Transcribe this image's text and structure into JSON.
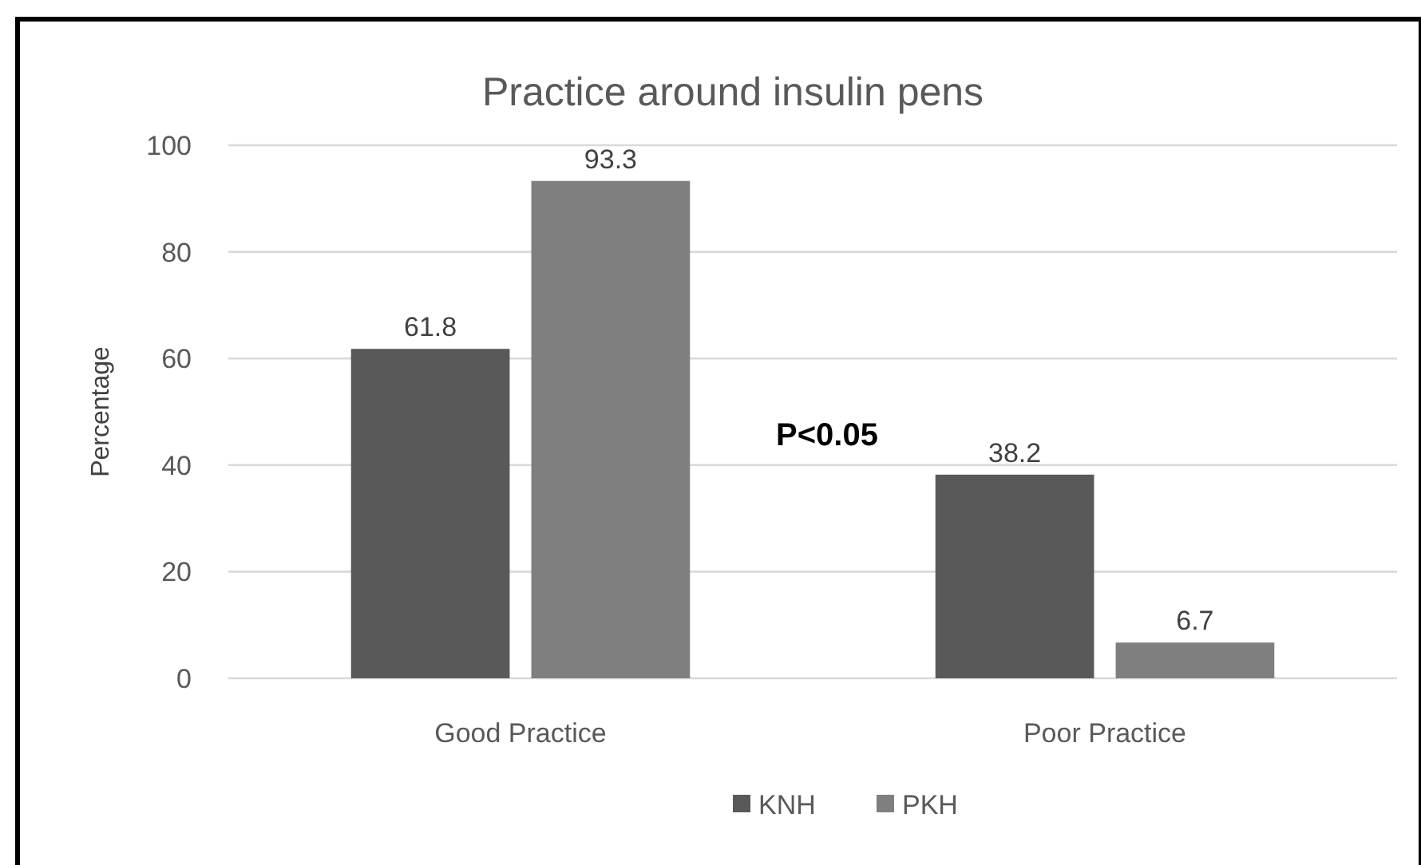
{
  "chart_data": {
    "type": "bar",
    "title": "Practice around insulin pens",
    "ylabel": "Percentage",
    "categories": [
      "Good Practice",
      "Poor Practice"
    ],
    "series": [
      {
        "name": "KNH",
        "color": "#595959",
        "values": [
          61.8,
          38.2
        ]
      },
      {
        "name": "PKH",
        "color": "#7f7f7f",
        "values": [
          93.3,
          6.7
        ]
      }
    ],
    "ylim": [
      0,
      100
    ],
    "yticks": [
      0,
      20,
      40,
      60,
      80,
      100
    ],
    "grid": "y",
    "legend": "bottom",
    "data_labels": true,
    "annotations": [
      "P<0.05"
    ]
  }
}
